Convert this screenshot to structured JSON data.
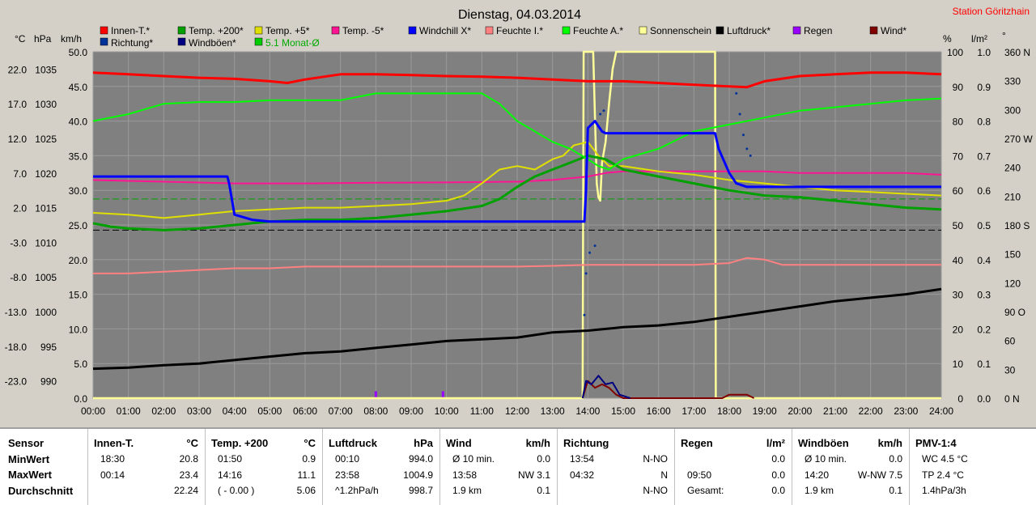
{
  "title": "Dienstag, 04.03.2014",
  "station": "Station Göritzhain",
  "colors": {
    "bg": "#d4d0c8",
    "plot": "#808080",
    "innen": "#ff0000",
    "t200": "#00a000",
    "t5": "#e0e000",
    "tm5": "#ff1493",
    "windchill": "#0000ff",
    "feuchteI": "#ff8080",
    "feuchteA": "#00ff00",
    "sonne": "#ffff99",
    "luftdruck": "#000000",
    "regen": "#9900ff",
    "wind": "#800000",
    "richtung": "#003399",
    "windboen": "#000080",
    "monat": "#00cc00"
  },
  "legend": [
    {
      "label": "Innen-T.*",
      "color": "#ff0000"
    },
    {
      "label": "Temp. +200*",
      "color": "#00a000"
    },
    {
      "label": "Temp. +5*",
      "color": "#e0e000"
    },
    {
      "label": "Temp. -5*",
      "color": "#ff1493"
    },
    {
      "label": "Windchill X*",
      "color": "#0000ff"
    },
    {
      "label": "Feuchte I.*",
      "color": "#ff8080"
    },
    {
      "label": "Feuchte A.*",
      "color": "#00ff00"
    },
    {
      "label": "Sonnenschein",
      "color": "#ffff99"
    },
    {
      "label": "Luftdruck*",
      "color": "#000000"
    },
    {
      "label": "Regen",
      "color": "#9900ff"
    },
    {
      "label": "Wind*",
      "color": "#800000"
    }
  ],
  "legend2": [
    {
      "label": "Richtung*",
      "color": "#003399"
    },
    {
      "label": "Windböen*",
      "color": "#000080"
    },
    {
      "label": "5.1 Monat-Ø",
      "color": "#00cc00"
    }
  ],
  "units": {
    "temp": "°C",
    "pressure": "hPa",
    "wind": "km/h",
    "hum": "%",
    "rain": "l/m²",
    "dir": "°"
  },
  "chart_data": {
    "type": "line",
    "title": "Dienstag, 04.03.2014",
    "xlim": [
      0,
      24
    ],
    "x_ticks": [
      "00:00",
      "01:00",
      "02:00",
      "03:00",
      "04:00",
      "05:00",
      "06:00",
      "07:00",
      "08:00",
      "09:00",
      "10:00",
      "11:00",
      "12:00",
      "13:00",
      "14:00",
      "15:00",
      "16:00",
      "17:00",
      "18:00",
      "19:00",
      "20:00",
      "21:00",
      "22:00",
      "23:00",
      "24:00"
    ],
    "axes": {
      "temp": {
        "ticks": [
          "22.0",
          "17.0",
          "12.0",
          "7.0",
          "2.0",
          "-3.0",
          "-8.0",
          "-13.0",
          "-18.0",
          "-23.0"
        ],
        "range": [
          -23,
          27
        ]
      },
      "pressure": {
        "ticks": [
          "1035",
          "1030",
          "1025",
          "1020",
          "1015",
          "1010",
          "1005",
          "1000",
          "995",
          "990"
        ],
        "range": [
          990,
          1040
        ]
      },
      "wind": {
        "ticks": [
          "50.0",
          "45.0",
          "40.0",
          "35.0",
          "30.0",
          "25.0",
          "20.0",
          "15.0",
          "10.0",
          "5.0",
          "0.0"
        ],
        "range": [
          0,
          50
        ]
      },
      "humidity": {
        "ticks": [
          "100",
          "90",
          "80",
          "70",
          "60",
          "50",
          "40",
          "30",
          "20",
          "10",
          "0"
        ],
        "range": [
          0,
          100
        ]
      },
      "rain": {
        "ticks": [
          "1.0",
          "0.9",
          "0.8",
          "0.7",
          "0.6",
          "0.5",
          "0.4",
          "0.3",
          "0.2",
          "0.1",
          "0.0"
        ],
        "range": [
          0,
          1
        ]
      },
      "direction": {
        "ticks": [
          "360 N",
          "330",
          "300",
          "270 W",
          "240",
          "210",
          "180 S",
          "150",
          "120",
          "90 O",
          "60",
          "30",
          "0 N"
        ],
        "range": [
          0,
          360
        ]
      }
    },
    "ref_lines": {
      "monat_green_pct": 57.5,
      "black_dashed_pct": 48.5
    },
    "series": [
      {
        "name": "Innen-T.*",
        "axis": "pct",
        "color": "#ff0000",
        "x": [
          0,
          1,
          2,
          3,
          4,
          5,
          5.5,
          6,
          7,
          8,
          9,
          10,
          11,
          12,
          13,
          14,
          15,
          16,
          17,
          18,
          18.5,
          19,
          20,
          21,
          22,
          23,
          24
        ],
        "y": [
          94,
          93.5,
          93,
          92.5,
          92.2,
          91.5,
          91,
          92,
          93.5,
          93.5,
          93.3,
          93,
          92.8,
          92.5,
          92,
          91.5,
          91.5,
          91,
          90.5,
          90,
          89.8,
          91.5,
          93,
          93.5,
          94,
          94,
          93.5
        ]
      },
      {
        "name": "Temp. +200*",
        "axis": "pct",
        "color": "#00a000",
        "x": [
          0,
          0.5,
          1,
          2,
          3,
          4,
          5,
          6,
          7,
          8,
          9,
          10,
          11,
          11.5,
          12,
          12.5,
          13,
          13.5,
          14,
          14.5,
          15,
          16,
          17,
          18,
          19,
          20,
          21,
          22,
          23,
          24
        ],
        "y": [
          50.5,
          49.5,
          49,
          48.5,
          49,
          50,
          51,
          51.5,
          51.5,
          52,
          53,
          54,
          55.5,
          57.5,
          61,
          64,
          66,
          68,
          70,
          69,
          66,
          64,
          62,
          60,
          58.5,
          58,
          57,
          56,
          55,
          54.5
        ]
      },
      {
        "name": "Temp. +5*",
        "axis": "pct",
        "color": "#e0e000",
        "x": [
          0,
          1,
          2,
          3,
          4,
          5,
          6,
          7,
          8,
          9,
          10,
          10.5,
          11,
          11.5,
          12,
          12.5,
          13,
          13.3,
          13.6,
          14,
          14.3,
          14.6,
          15,
          16,
          17,
          18,
          19,
          20,
          21,
          22,
          23,
          24
        ],
        "y": [
          53.5,
          53,
          52,
          53,
          54,
          54.5,
          55,
          55,
          55.5,
          56,
          57,
          58.5,
          62,
          66,
          67,
          66,
          69,
          70,
          73,
          74,
          70,
          67,
          67,
          65.5,
          64.5,
          63,
          62,
          61,
          60,
          59.5,
          59,
          58.5
        ]
      },
      {
        "name": "Temp. -5*",
        "axis": "pct",
        "color": "#ff1493",
        "x": [
          0,
          2,
          4,
          6,
          8,
          10,
          12,
          13,
          14,
          14.5,
          15,
          16,
          17,
          18,
          19,
          20,
          21,
          22,
          23,
          24
        ],
        "y": [
          63,
          62.5,
          62,
          62,
          62.2,
          62.3,
          62.5,
          63,
          64,
          65,
          65.5,
          65.5,
          65.5,
          65.5,
          65.5,
          65,
          65,
          65,
          65,
          64.5
        ]
      },
      {
        "name": "Windchill X*",
        "axis": "pct",
        "color": "#0000ff",
        "x": [
          0,
          3.8,
          3.85,
          4,
          4.5,
          5,
          6,
          8,
          10,
          12,
          13.5,
          13.9,
          13.95,
          14,
          14.2,
          14.4,
          14.5,
          15,
          16,
          17,
          17.6,
          17.7,
          18,
          18.2,
          18.5,
          19,
          20,
          21,
          22,
          23,
          24
        ],
        "y": [
          64,
          64,
          62,
          53,
          51.5,
          51,
          51,
          51,
          51,
          51,
          51,
          51,
          60,
          78,
          80,
          77,
          76.5,
          76.5,
          76.5,
          76.5,
          76.5,
          72,
          65,
          62,
          61,
          61,
          61,
          61,
          61,
          61,
          61
        ]
      },
      {
        "name": "Feuchte I.*",
        "axis": "pct",
        "color": "#ff8080",
        "x": [
          0,
          1,
          2,
          3,
          4,
          5,
          6,
          7,
          8,
          9,
          10,
          11,
          12,
          13,
          14,
          15,
          16,
          17,
          18,
          18.5,
          19,
          19.5,
          20,
          21,
          22,
          23,
          24
        ],
        "y": [
          36,
          36,
          36.5,
          37,
          37.5,
          37.5,
          38,
          38,
          38,
          38,
          38,
          38,
          38,
          38.2,
          38.5,
          38.5,
          38.5,
          38.5,
          39,
          40.5,
          40,
          38.5,
          38.5,
          38.5,
          38.5,
          38.5,
          38.5
        ]
      },
      {
        "name": "Feuchte A.*",
        "axis": "pct",
        "color": "#00ff00",
        "x": [
          0,
          0.5,
          1,
          1.5,
          2,
          3,
          4,
          5,
          6,
          7,
          8,
          9,
          10,
          11,
          11.5,
          12,
          12.5,
          13,
          13.5,
          14,
          14.3,
          14.6,
          15,
          16,
          16.5,
          17,
          18,
          19,
          20,
          21,
          22,
          23,
          24
        ],
        "y": [
          80,
          81,
          82,
          83.5,
          85,
          85.5,
          85.5,
          86,
          86,
          86,
          88,
          88,
          88,
          88,
          85,
          80,
          77,
          74,
          72,
          69,
          67,
          66,
          69,
          72,
          74.5,
          77,
          79,
          81,
          83,
          84,
          85,
          86,
          86.5
        ]
      },
      {
        "name": "Sonnenschein",
        "axis": "pct",
        "color": "#ffff99",
        "x": [
          0,
          13.85,
          13.88,
          14.0,
          14.15,
          14.25,
          14.3,
          14.35,
          14.4,
          14.5,
          14.6,
          14.7,
          14.8,
          15,
          16,
          17,
          17.6,
          17.62,
          24
        ],
        "y": [
          0,
          0,
          100,
          100,
          100,
          62,
          58,
          57,
          68,
          74,
          85,
          95,
          100,
          100,
          100,
          100,
          100,
          0,
          0
        ]
      },
      {
        "name": "Luftdruck*",
        "axis": "pct",
        "color": "#000000",
        "x": [
          0,
          1,
          2,
          3,
          4,
          5,
          6,
          7,
          8,
          9,
          10,
          11,
          12,
          13,
          14,
          15,
          16,
          17,
          18,
          19,
          20,
          21,
          22,
          23,
          24
        ],
        "y": [
          8.5,
          8.8,
          9.5,
          10,
          11,
          12,
          13,
          13.5,
          14.5,
          15.5,
          16.5,
          17,
          17.5,
          19,
          19.5,
          20.5,
          21,
          22,
          23.5,
          25,
          26.5,
          28,
          29,
          30,
          31.5
        ]
      },
      {
        "name": "Wind*",
        "axis": "pct",
        "color": "#800000",
        "x": [
          13.85,
          14,
          14.2,
          14.4,
          14.6,
          14.8,
          15,
          17.8,
          18,
          18.5,
          18.7
        ],
        "y": [
          0,
          5,
          3,
          4,
          3,
          1,
          0,
          0,
          1,
          1,
          0
        ]
      },
      {
        "name": "Windböen*",
        "axis": "pct",
        "color": "#000080",
        "x": [
          13.85,
          13.95,
          14.1,
          14.3,
          14.5,
          14.7,
          14.9,
          15.2
        ],
        "y": [
          0,
          5,
          4,
          6.5,
          4,
          4.5,
          1,
          0
        ]
      }
    ],
    "rain_bars": [
      {
        "x": 8.0,
        "pct": 2
      },
      {
        "x": 9.9,
        "pct": 2
      }
    ]
  },
  "stats": {
    "sensor_label": "Sensor",
    "row_labels": [
      "MinWert",
      "MaxWert",
      "Durchschnitt"
    ],
    "columns": [
      {
        "title": "Innen-T.",
        "unit": "°C",
        "rows": [
          [
            "18:30",
            "20.8"
          ],
          [
            "00:14",
            "23.4"
          ],
          [
            "",
            "22.24"
          ]
        ]
      },
      {
        "title": "Temp. +200",
        "unit": "°C",
        "rows": [
          [
            "01:50",
            "0.9"
          ],
          [
            "14:16",
            "11.1"
          ],
          [
            "( - 0.00 )",
            "5.06"
          ]
        ]
      },
      {
        "title": "Luftdruck",
        "unit": "hPa",
        "rows": [
          [
            "00:10",
            "994.0"
          ],
          [
            "23:58",
            "1004.9"
          ],
          [
            "^1.2hPa/h",
            "998.7"
          ]
        ]
      },
      {
        "title": "Wind",
        "unit": "km/h",
        "rows": [
          [
            "Ø 10 min.",
            "0.0"
          ],
          [
            "13:58",
            "NW 3.1"
          ],
          [
            "1.9 km",
            "0.1"
          ]
        ]
      },
      {
        "title": "Richtung",
        "unit": "",
        "rows": [
          [
            "13:54",
            "N-NO"
          ],
          [
            "04:32",
            "N"
          ],
          [
            "",
            "N-NO"
          ]
        ]
      },
      {
        "title": "Regen",
        "unit": "l/m²",
        "rows": [
          [
            "",
            "0.0"
          ],
          [
            "09:50",
            "0.0"
          ],
          [
            "Gesamt:",
            "0.0"
          ]
        ]
      },
      {
        "title": "Windböen",
        "unit": "km/h",
        "rows": [
          [
            "Ø 10 min.",
            "0.0"
          ],
          [
            "14:20",
            "W-NW 7.5"
          ],
          [
            "1.9 km",
            "0.1"
          ]
        ]
      },
      {
        "title": "PMV-1:4",
        "unit": "",
        "rows": [
          [
            "WC 4.5 °C",
            ""
          ],
          [
            "TP 2.4 °C",
            ""
          ],
          [
            "1.4hPa/3h",
            ""
          ]
        ]
      }
    ]
  }
}
